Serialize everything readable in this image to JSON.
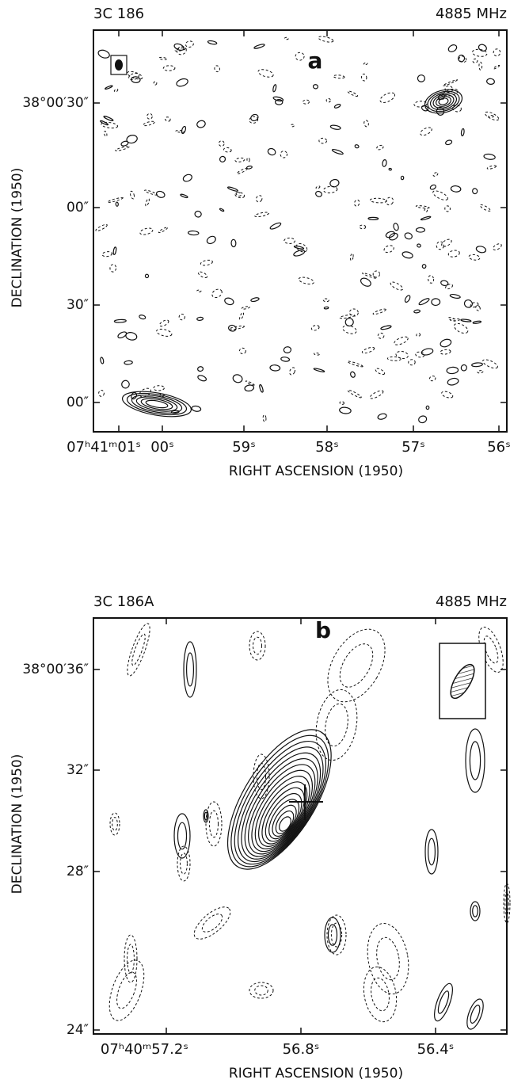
{
  "panels": [
    {
      "source": "3C 186",
      "frequency": "4885 MHz",
      "label": "a",
      "y_axis": {
        "title": "DECLINATION (1950)",
        "ticks": [
          "38°00′30″",
          "00″",
          "30″",
          "00″"
        ]
      },
      "x_axis": {
        "title": "RIGHT ASCENSION (1950)",
        "ticks": [
          "07ʰ41ᵐ01ˢ",
          "00ˢ",
          "59ˢ",
          "58ˢ",
          "57ˢ",
          "56ˢ"
        ]
      }
    },
    {
      "source": "3C 186A",
      "frequency": "4885 MHz",
      "label": "b",
      "y_axis": {
        "title": "DECLINATION (1950)",
        "ticks": [
          "38°00′36″",
          "32″",
          "28″",
          "24″"
        ]
      },
      "x_axis": {
        "title": "RIGHT ASCENSION (1950)",
        "ticks": [
          "07ʰ40ᵐ57.2ˢ",
          "56.8ˢ",
          "56.4ˢ"
        ]
      }
    }
  ]
}
